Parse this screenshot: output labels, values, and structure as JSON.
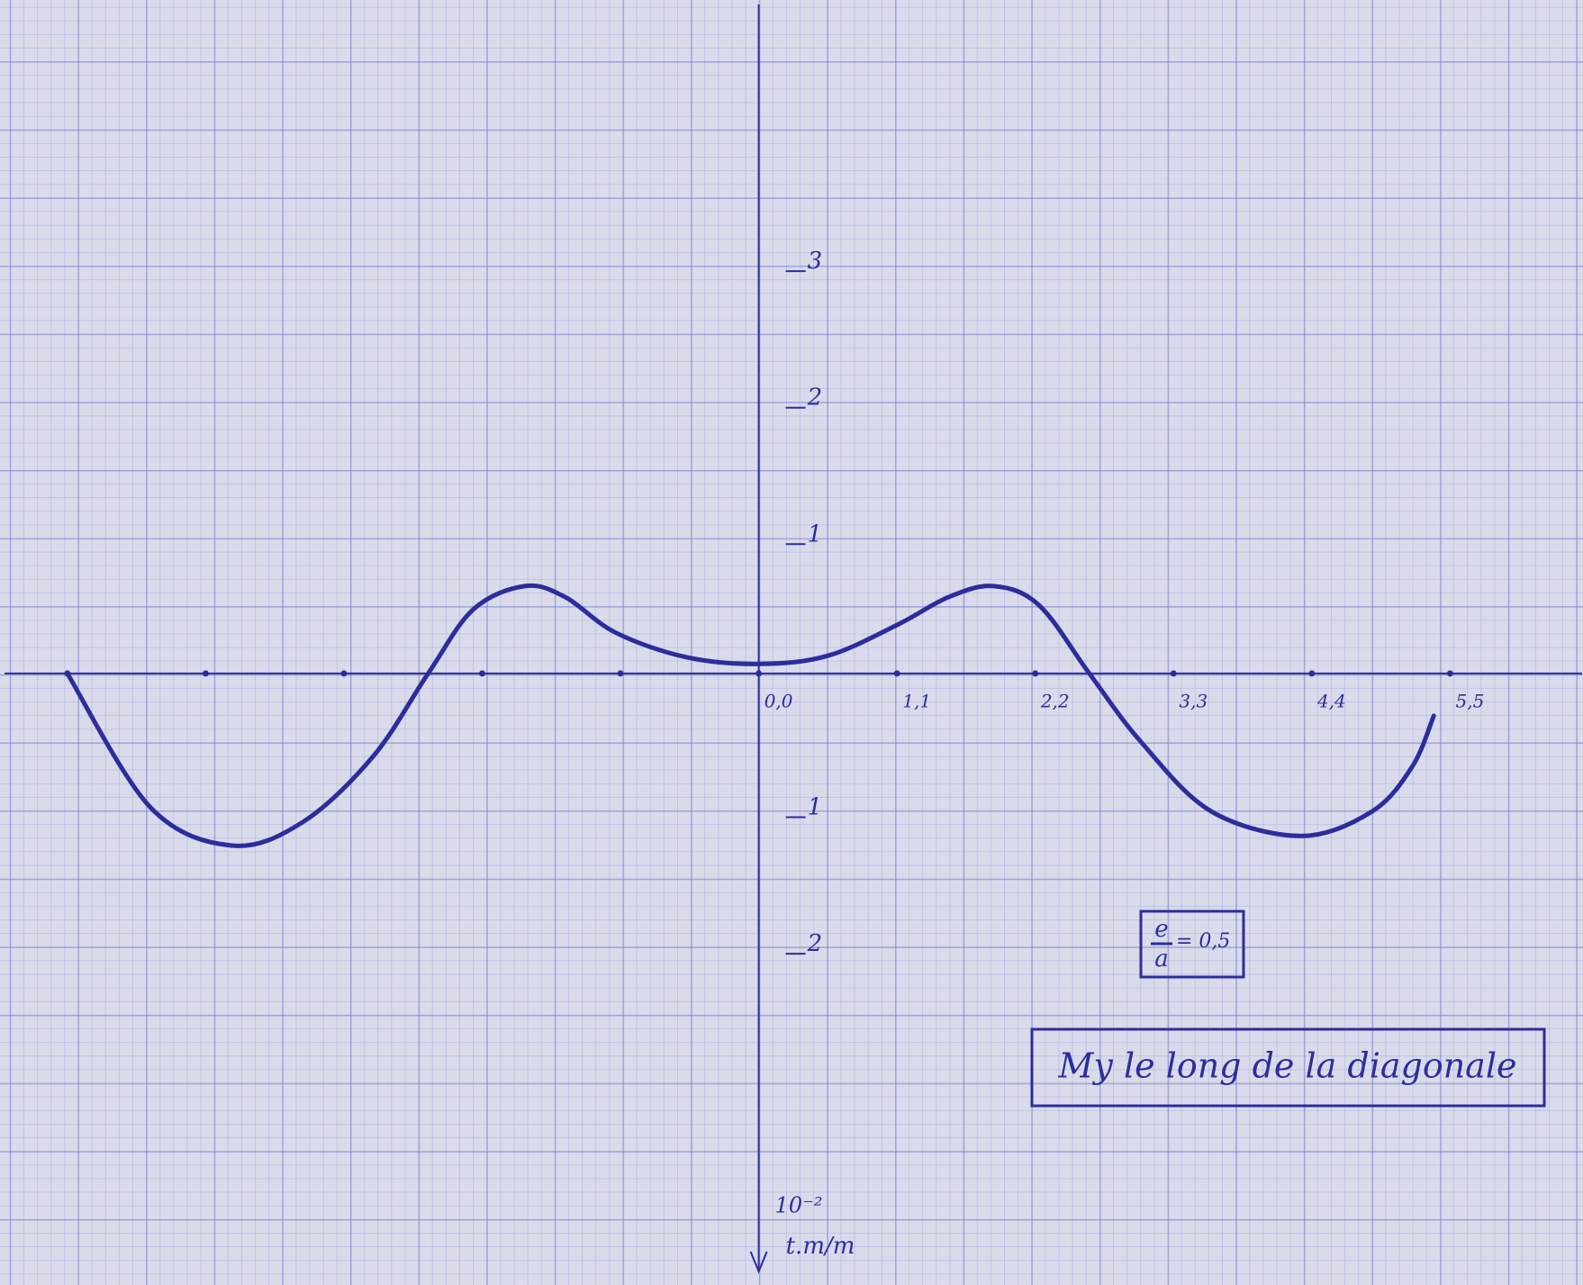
{
  "chart_data": {
    "type": "line",
    "title": "My le long de la diagonale",
    "ratio": {
      "numerator": "e",
      "denominator": "a",
      "text": "= 0,5"
    },
    "unit_scale": "10⁻²",
    "ylabel": "t.m/m",
    "color": "#2e2c9c",
    "y_direction": "down",
    "xlim": [
      -6,
      6.55
    ],
    "ylim": [
      -4.9,
      4.38
    ],
    "xticks": [
      {
        "value": 0,
        "label": "0,0"
      },
      {
        "value": 1.1,
        "label": "1,1"
      },
      {
        "value": 2.2,
        "label": "2,2"
      },
      {
        "value": 3.3,
        "label": "3,3"
      },
      {
        "value": 4.4,
        "label": "4,4"
      },
      {
        "value": 5.5,
        "label": "5,5"
      }
    ],
    "xminor": [
      -1.1,
      -2.2,
      -3.3,
      -4.4,
      -5.5
    ],
    "yticks": [
      {
        "value": -3,
        "label": "3"
      },
      {
        "value": -2,
        "label": "2"
      },
      {
        "value": -1,
        "label": "1"
      },
      1,
      2
    ],
    "x": [
      -5.5,
      -4.84,
      -4.19,
      -3.63,
      -3.07,
      -2.63,
      -2.27,
      -1.86,
      -1.54,
      -1.14,
      -0.58,
      0,
      0.55,
      1.11,
      1.51,
      1.87,
      2.23,
      2.63,
      3.04,
      3.6,
      4.32,
      4.88,
      5.2,
      5.37
    ],
    "values": [
      0,
      0.98,
      1.26,
      1.09,
      0.61,
      0,
      -0.47,
      -0.64,
      -0.56,
      -0.3,
      -0.12,
      -0.07,
      -0.13,
      -0.36,
      -0.56,
      -0.64,
      -0.5,
      0,
      0.5,
      1.01,
      1.19,
      1.01,
      0.68,
      0.31
    ]
  }
}
